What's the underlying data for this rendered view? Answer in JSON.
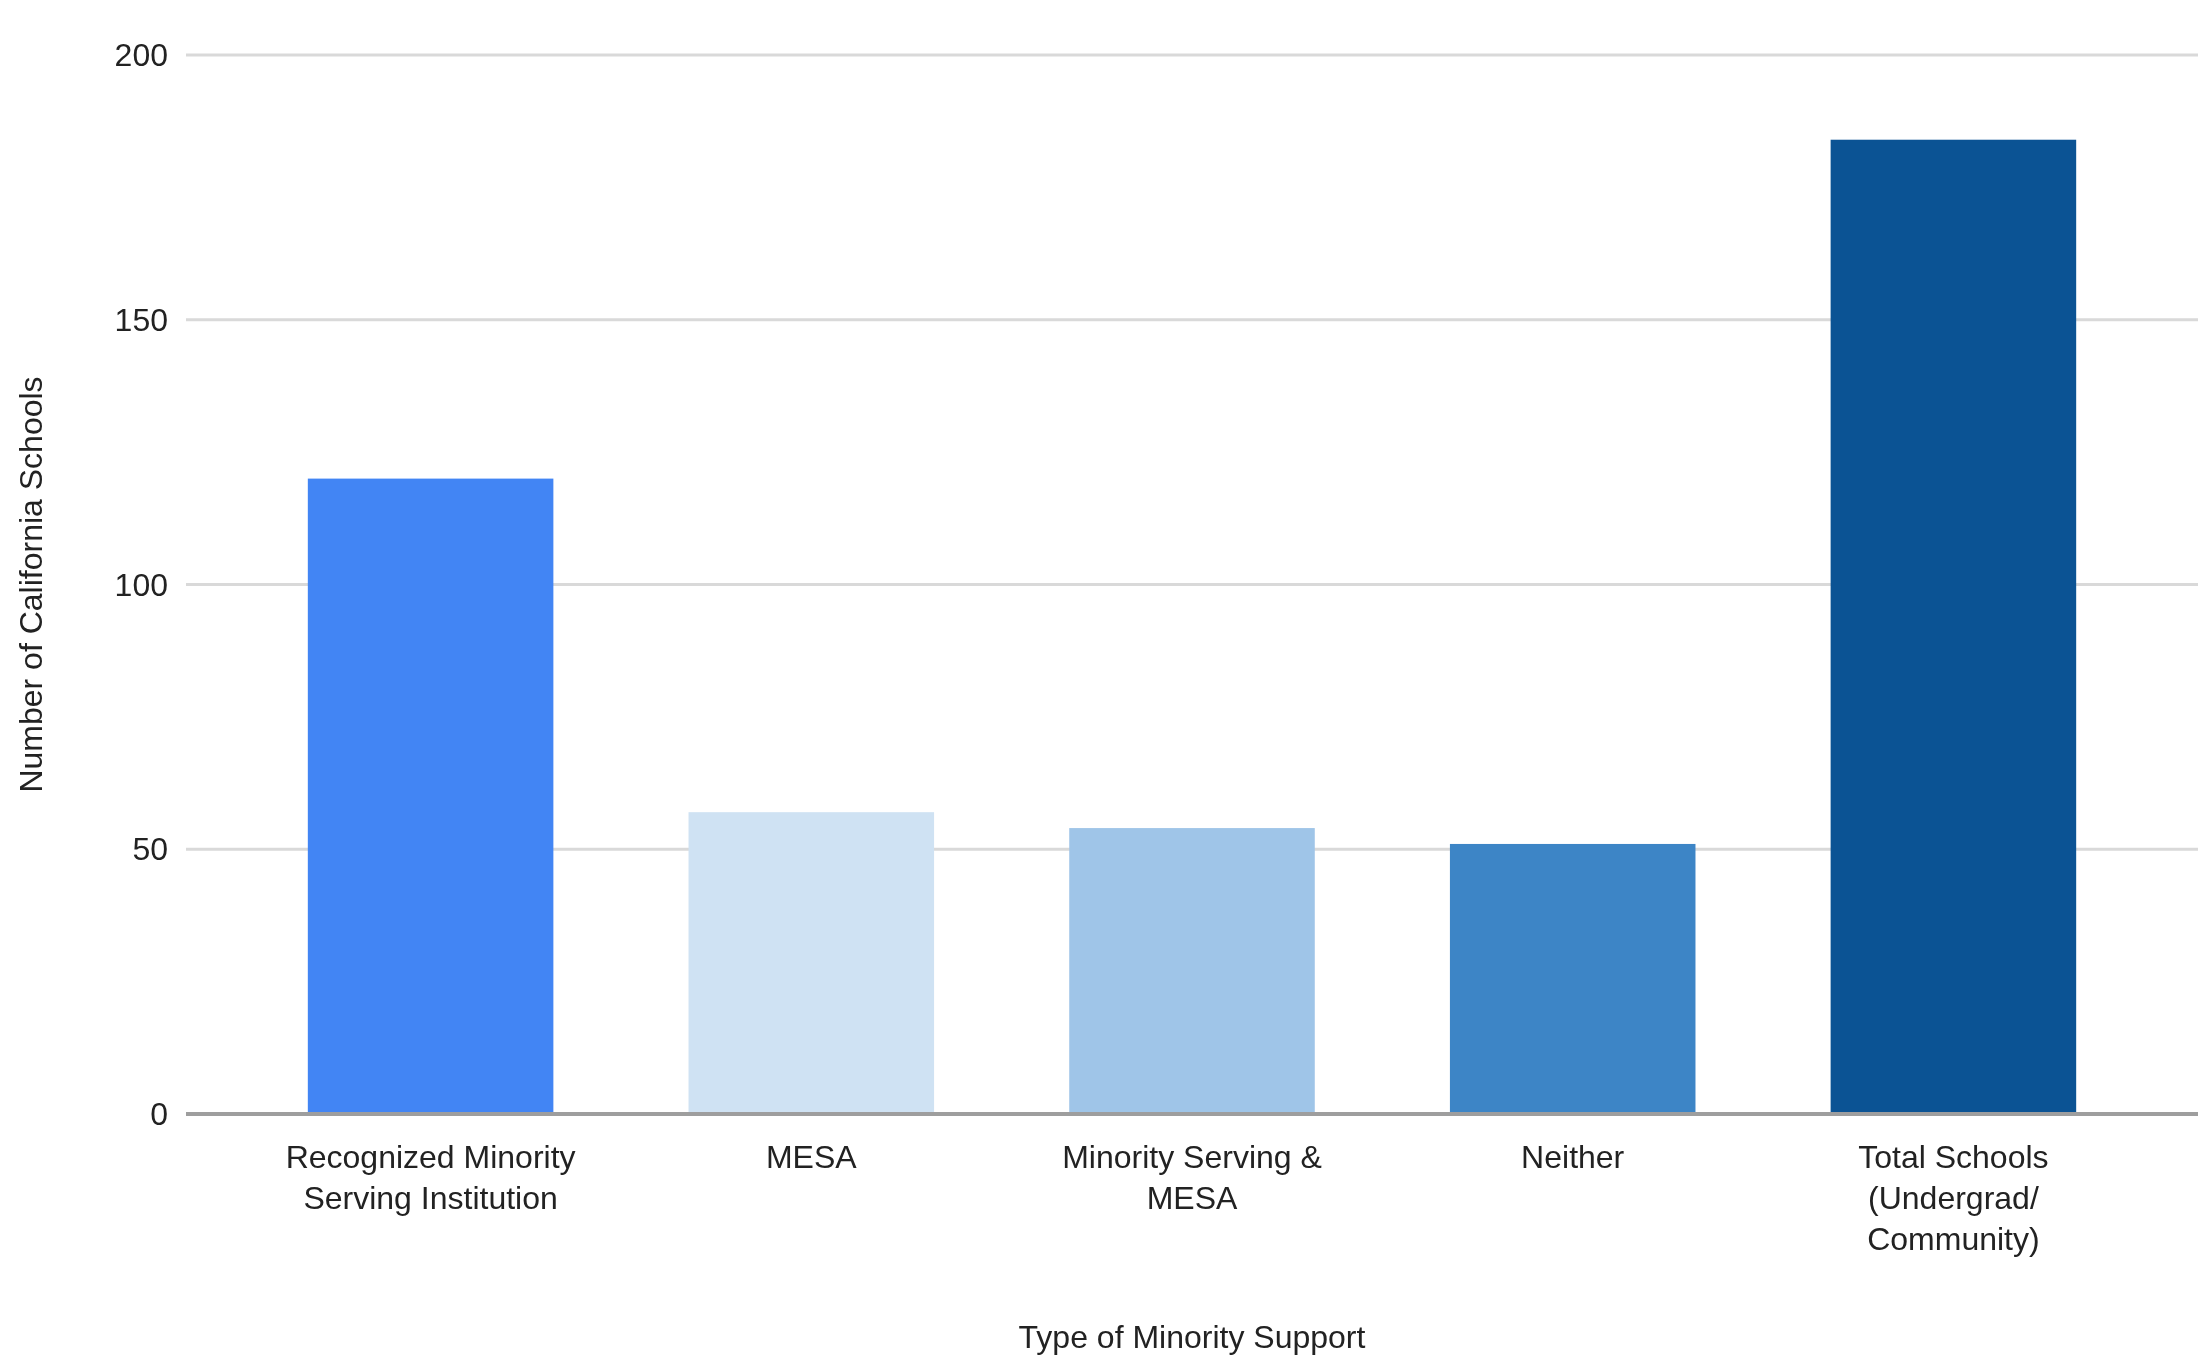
{
  "chart_data": {
    "type": "bar",
    "xlabel": "Type of Minority Support",
    "ylabel": "Number of California Schools",
    "categories": [
      "Recognized Minority Serving Institution",
      "MESA",
      "Minority Serving & MESA",
      "Neither",
      "Total Schools (Undergrad/ Community)"
    ],
    "values": [
      120,
      57,
      54,
      51,
      184
    ],
    "colors": [
      "#4285f4",
      "#cfe2f3",
      "#9fc5e8",
      "#3d85c6",
      "#0b5394"
    ],
    "ylim": [
      0,
      200
    ],
    "yticks": [
      0,
      50,
      100,
      150,
      200
    ],
    "grid": "y"
  }
}
